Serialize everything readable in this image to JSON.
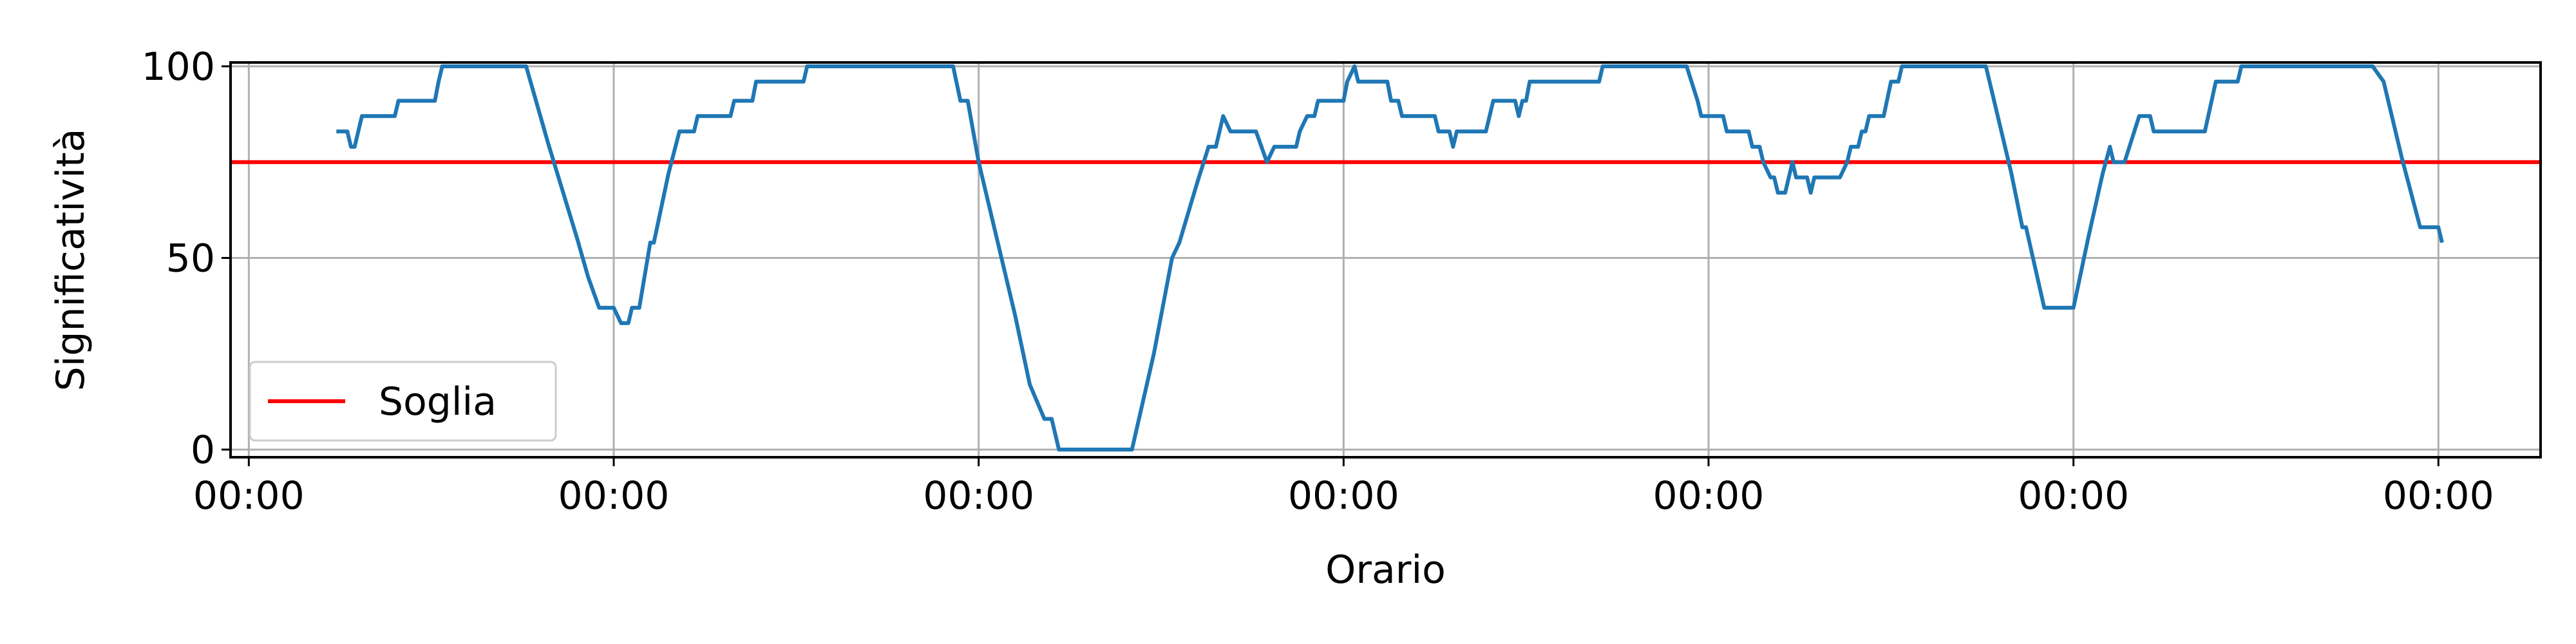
{
  "chart_data": {
    "type": "line",
    "xlabel": "Orario",
    "ylabel": "Significatività",
    "x_tick_labels": [
      "00:00",
      "00:00",
      "00:00",
      "00:00",
      "00:00",
      "00:00",
      "00:00"
    ],
    "xlim": [
      -0.05,
      6.28
    ],
    "ylim": [
      -2,
      101
    ],
    "y_ticks": [
      0,
      50,
      100
    ],
    "grid": true,
    "legend": {
      "placement": "lower-left",
      "entries": [
        {
          "label": "Soglia",
          "color": "#ff0000"
        }
      ]
    },
    "threshold": {
      "name": "Soglia",
      "value": 75,
      "color": "#ff0000"
    },
    "series": [
      {
        "color": "#1f77b4",
        "points": [
          [
            0.24,
            83
          ],
          [
            0.27,
            83
          ],
          [
            0.28,
            79
          ],
          [
            0.29,
            79
          ],
          [
            0.3,
            83
          ],
          [
            0.31,
            87
          ],
          [
            0.4,
            87
          ],
          [
            0.41,
            91
          ],
          [
            0.51,
            91
          ],
          [
            0.52,
            96
          ],
          [
            0.53,
            100
          ],
          [
            0.76,
            100
          ],
          [
            0.82,
            80
          ],
          [
            0.9,
            55
          ],
          [
            0.93,
            45
          ],
          [
            0.96,
            37
          ],
          [
            1.0,
            37
          ],
          [
            1.02,
            33
          ],
          [
            1.04,
            33
          ],
          [
            1.05,
            37
          ],
          [
            1.07,
            37
          ],
          [
            1.1,
            54
          ],
          [
            1.11,
            54
          ],
          [
            1.15,
            72
          ],
          [
            1.18,
            83
          ],
          [
            1.22,
            83
          ],
          [
            1.23,
            87
          ],
          [
            1.32,
            87
          ],
          [
            1.33,
            91
          ],
          [
            1.38,
            91
          ],
          [
            1.39,
            96
          ],
          [
            1.52,
            96
          ],
          [
            1.53,
            100
          ],
          [
            1.93,
            100
          ],
          [
            1.95,
            91
          ],
          [
            1.97,
            91
          ],
          [
            2.0,
            75
          ],
          [
            2.05,
            55
          ],
          [
            2.1,
            35
          ],
          [
            2.14,
            17
          ],
          [
            2.18,
            8
          ],
          [
            2.2,
            8
          ],
          [
            2.22,
            0
          ],
          [
            2.42,
            0
          ],
          [
            2.48,
            25
          ],
          [
            2.53,
            50
          ],
          [
            2.55,
            54
          ],
          [
            2.6,
            70
          ],
          [
            2.63,
            79
          ],
          [
            2.65,
            79
          ],
          [
            2.67,
            87
          ],
          [
            2.69,
            83
          ],
          [
            2.76,
            83
          ],
          [
            2.79,
            75
          ],
          [
            2.81,
            79
          ],
          [
            2.87,
            79
          ],
          [
            2.88,
            83
          ],
          [
            2.9,
            87
          ],
          [
            2.92,
            87
          ],
          [
            2.93,
            91
          ],
          [
            3.0,
            91
          ],
          [
            3.01,
            96
          ],
          [
            3.03,
            100
          ],
          [
            3.04,
            96
          ],
          [
            3.12,
            96
          ],
          [
            3.13,
            91
          ],
          [
            3.15,
            91
          ],
          [
            3.16,
            87
          ],
          [
            3.25,
            87
          ],
          [
            3.26,
            83
          ],
          [
            3.29,
            83
          ],
          [
            3.3,
            79
          ],
          [
            3.31,
            83
          ],
          [
            3.39,
            83
          ],
          [
            3.4,
            87
          ],
          [
            3.41,
            91
          ],
          [
            3.47,
            91
          ],
          [
            3.48,
            87
          ],
          [
            3.49,
            91
          ],
          [
            3.5,
            91
          ],
          [
            3.51,
            96
          ],
          [
            3.7,
            96
          ],
          [
            3.71,
            100
          ],
          [
            3.94,
            100
          ],
          [
            3.97,
            91
          ],
          [
            3.98,
            87
          ],
          [
            4.04,
            87
          ],
          [
            4.05,
            83
          ],
          [
            4.11,
            83
          ],
          [
            4.12,
            79
          ],
          [
            4.14,
            79
          ],
          [
            4.15,
            75
          ],
          [
            4.17,
            71
          ],
          [
            4.18,
            71
          ],
          [
            4.19,
            67
          ],
          [
            4.21,
            67
          ],
          [
            4.23,
            75
          ],
          [
            4.24,
            71
          ],
          [
            4.27,
            71
          ],
          [
            4.28,
            67
          ],
          [
            4.29,
            71
          ],
          [
            4.36,
            71
          ],
          [
            4.38,
            75
          ],
          [
            4.39,
            79
          ],
          [
            4.41,
            79
          ],
          [
            4.42,
            83
          ],
          [
            4.43,
            83
          ],
          [
            4.44,
            87
          ],
          [
            4.48,
            87
          ],
          [
            4.5,
            96
          ],
          [
            4.52,
            96
          ],
          [
            4.53,
            100
          ],
          [
            4.76,
            100
          ],
          [
            4.79,
            88
          ],
          [
            4.83,
            72
          ],
          [
            4.86,
            58
          ],
          [
            4.87,
            58
          ],
          [
            4.92,
            37
          ],
          [
            5.0,
            37
          ],
          [
            5.04,
            55
          ],
          [
            5.08,
            72
          ],
          [
            5.1,
            79
          ],
          [
            5.11,
            75
          ],
          [
            5.14,
            75
          ],
          [
            5.18,
            87
          ],
          [
            5.21,
            87
          ],
          [
            5.22,
            83
          ],
          [
            5.36,
            83
          ],
          [
            5.39,
            96
          ],
          [
            5.45,
            96
          ],
          [
            5.46,
            100
          ],
          [
            5.82,
            100
          ],
          [
            5.85,
            96
          ],
          [
            5.9,
            76
          ],
          [
            5.95,
            58
          ],
          [
            6.0,
            58
          ],
          [
            6.01,
            54
          ]
        ]
      }
    ]
  }
}
